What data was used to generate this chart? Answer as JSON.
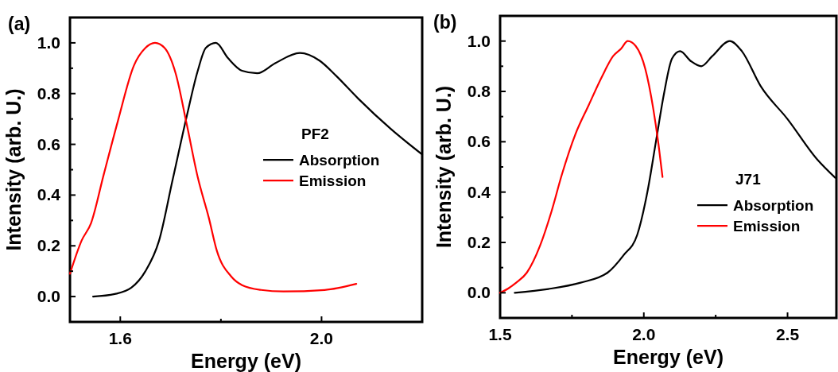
{
  "chart_data": [
    {
      "type": "line",
      "xlabel": "Energy (eV)",
      "ylabel": "Intensity (arb. U.)",
      "legend_title": "PF2",
      "legend": "right",
      "annotations": [
        "(a)"
      ],
      "xlim": [
        1.5,
        2.2
      ],
      "ylim": [
        -0.1,
        1.1
      ],
      "xticks": [
        1.6,
        {
          "value": 1.8,
          "label": null
        },
        {
          "value": 2.0,
          "label": "2.0"
        }
      ],
      "yticks": [
        "0.0",
        {
          "value": 0.1,
          "label": null
        },
        {
          "value": 0.2,
          "label": "0.2"
        },
        {
          "value": 0.3,
          "label": null
        },
        {
          "value": 0.4,
          "label": "0.4"
        },
        {
          "value": 0.5,
          "label": null
        },
        {
          "value": 0.6,
          "label": "0.6"
        },
        {
          "value": 0.7,
          "label": null
        },
        {
          "value": 0.8,
          "label": "0.8"
        },
        {
          "value": 0.9,
          "label": null
        },
        {
          "value": 1.0,
          "label": "1.0"
        }
      ],
      "series": [
        {
          "name": "Absorption",
          "color": "#000000",
          "x": [
            1.546,
            1.589,
            1.622,
            1.65,
            1.677,
            1.704,
            1.732,
            1.754,
            1.77,
            1.79,
            1.814,
            1.842,
            1.872,
            1.908,
            1.957,
            1.996,
            2.029,
            2.073,
            2.138,
            2.2
          ],
          "values": [
            0.0,
            0.01,
            0.035,
            0.1,
            0.22,
            0.46,
            0.71,
            0.89,
            0.98,
            1.0,
            0.94,
            0.89,
            0.88,
            0.92,
            0.96,
            0.93,
            0.87,
            0.78,
            0.66,
            0.56
          ]
        },
        {
          "name": "Emission",
          "color": "#ff0000",
          "x": [
            1.5,
            1.523,
            1.542,
            1.567,
            1.595,
            1.627,
            1.65,
            1.669,
            1.688,
            1.71,
            1.732,
            1.754,
            1.776,
            1.792,
            1.82,
            1.842,
            1.88,
            1.924,
            2.006,
            2.069
          ],
          "values": [
            0.09,
            0.22,
            0.29,
            0.48,
            0.69,
            0.91,
            0.98,
            1.0,
            0.98,
            0.88,
            0.68,
            0.47,
            0.31,
            0.18,
            0.08,
            0.045,
            0.026,
            0.02,
            0.026,
            0.05
          ]
        }
      ]
    },
    {
      "type": "line",
      "xlabel": "Energy (eV)",
      "ylabel": "Intensity (arb. U.)",
      "legend_title": "J71",
      "legend": "bottom right",
      "annotations": [
        "(b)"
      ],
      "xlim": [
        1.5,
        2.67
      ],
      "ylim": [
        -0.1,
        1.1
      ],
      "xticks": [
        1.5,
        {
          "value": 1.75,
          "label": null
        },
        {
          "value": 2.0,
          "label": "2.0"
        },
        {
          "value": 2.25,
          "label": null
        },
        2.5
      ],
      "yticks": [
        "0.0",
        {
          "value": 0.1,
          "label": null
        },
        {
          "value": 0.2,
          "label": "0.2"
        },
        {
          "value": 0.3,
          "label": null
        },
        {
          "value": 0.4,
          "label": "0.4"
        },
        {
          "value": 0.5,
          "label": null
        },
        {
          "value": 0.6,
          "label": "0.6"
        },
        {
          "value": 0.7,
          "label": null
        },
        {
          "value": 0.8,
          "label": "0.8"
        },
        {
          "value": 0.9,
          "label": null
        },
        {
          "value": 1.0,
          "label": "1.0"
        }
      ],
      "series": [
        {
          "name": "Absorption",
          "color": "#000000",
          "x": [
            1.551,
            1.668,
            1.78,
            1.874,
            1.93,
            1.977,
            2.014,
            2.042,
            2.07,
            2.098,
            2.126,
            2.164,
            2.2,
            2.238,
            2.299,
            2.341,
            2.407,
            2.5,
            2.603,
            2.666
          ],
          "values": [
            0.0,
            0.015,
            0.04,
            0.08,
            0.15,
            0.23,
            0.41,
            0.6,
            0.79,
            0.93,
            0.96,
            0.92,
            0.9,
            0.94,
            1.0,
            0.96,
            0.82,
            0.69,
            0.53,
            0.457
          ]
        },
        {
          "name": "Emission",
          "color": "#ff0000",
          "x": [
            1.5,
            1.528,
            1.556,
            1.593,
            1.64,
            1.678,
            1.715,
            1.762,
            1.808,
            1.855,
            1.893,
            1.921,
            1.944,
            1.972,
            2.005,
            2.033,
            2.051,
            2.065
          ],
          "values": [
            0.0,
            0.017,
            0.04,
            0.08,
            0.19,
            0.32,
            0.47,
            0.63,
            0.745,
            0.86,
            0.94,
            0.97,
            1.0,
            0.98,
            0.89,
            0.73,
            0.59,
            0.46
          ]
        }
      ]
    }
  ]
}
